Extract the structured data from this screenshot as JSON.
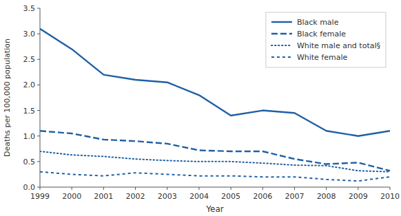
{
  "chart_data": {
    "type": "line",
    "xlabel": "Year",
    "ylabel": "Deaths per 100,000 population",
    "x": [
      1999,
      2000,
      2001,
      2002,
      2003,
      2004,
      2005,
      2006,
      2007,
      2008,
      2009,
      2010
    ],
    "xlim": [
      1999,
      2010
    ],
    "xticks": [
      1999,
      2000,
      2001,
      2002,
      2003,
      2004,
      2005,
      2006,
      2007,
      2008,
      2009,
      2010
    ],
    "ylim": [
      0.0,
      3.5
    ],
    "yticks": [
      {
        "value": 0.0,
        "label": "0.0"
      },
      0.5,
      {
        "value": 1.0,
        "label": "1.0"
      },
      1.5,
      {
        "value": 2.0,
        "label": "2.0"
      },
      2.5,
      {
        "value": 3.0,
        "label": "3.0"
      },
      3.5
    ],
    "color": "#1f5fa6",
    "grid": false,
    "legend": "upper right",
    "series": [
      {
        "name": "Black male",
        "line_style": "solid",
        "values": [
          3.1,
          2.7,
          2.2,
          2.1,
          2.05,
          1.8,
          1.4,
          1.5,
          1.45,
          1.1,
          1.0,
          1.1
        ]
      },
      {
        "name": "Black female",
        "line_style": "long-dash",
        "values": [
          1.1,
          1.05,
          0.93,
          0.9,
          0.85,
          0.72,
          0.7,
          0.7,
          0.55,
          0.45,
          0.48,
          0.32
        ]
      },
      {
        "name": "White male and total§",
        "line_style": "dotted",
        "values": [
          0.7,
          0.63,
          0.6,
          0.55,
          0.52,
          0.5,
          0.5,
          0.47,
          0.43,
          0.42,
          0.32,
          0.3
        ]
      },
      {
        "name": "White female",
        "line_style": "dashed",
        "values": [
          0.3,
          0.25,
          0.22,
          0.28,
          0.25,
          0.22,
          0.22,
          0.2,
          0.2,
          0.15,
          0.12,
          0.2
        ]
      }
    ]
  }
}
